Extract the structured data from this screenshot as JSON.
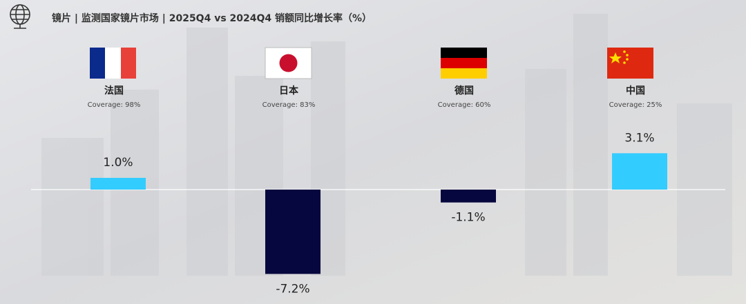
{
  "chart_data": {
    "type": "bar",
    "title": "镜片 | 监测国家镜片市场 | 2025Q4 vs 2024Q4 销额同比增长率（%）",
    "categories": [
      "法国",
      "日本",
      "德国",
      "中国"
    ],
    "coverage": [
      "Coverage: 98%",
      "Coverage: 83%",
      "Coverage: 60%",
      "Coverage: 25%"
    ],
    "values": [
      1.0,
      -7.2,
      -1.1,
      3.1
    ],
    "value_labels": [
      "1.0%",
      "-7.2%",
      "-1.1%",
      "3.1%"
    ],
    "colors": [
      "#33ccff",
      "#07073f",
      "#07073f",
      "#33ccff"
    ]
  }
}
